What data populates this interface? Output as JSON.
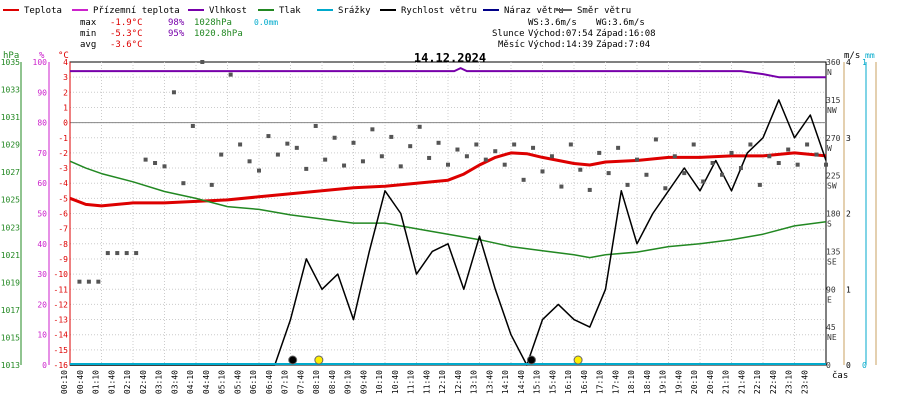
{
  "legend": [
    {
      "label": "Teplota",
      "color": "#dd0000"
    },
    {
      "label": "Přízemní teplota",
      "color": "#cc22cc"
    },
    {
      "label": "Vlhkost",
      "color": "#7700aa"
    },
    {
      "label": "Tlak",
      "color": "#228822"
    },
    {
      "label": "Srážky",
      "color": "#00aacc"
    },
    {
      "label": "Rychlost větru",
      "color": "#000000"
    },
    {
      "label": "Náraz větru",
      "color": "#000088"
    },
    {
      "label": "Směr větru",
      "color": "#666666"
    }
  ],
  "stats": {
    "max_label": "max",
    "max_temp": "-1.9°C",
    "max_hum": "98%",
    "max_press": "1028hPa",
    "rain_total": "0.0mm",
    "min_label": "min",
    "min_temp": "-5.3°C",
    "min_hum": "95%",
    "min_press": "1020.8hPa",
    "avg_label": "avg",
    "avg_temp": "-3.6°C"
  },
  "wind_stats": {
    "ws": "WS:3.6m/s",
    "wg": "WG:3.6m/s"
  },
  "sun": {
    "label": "Slunce",
    "rise": "Východ:07:54",
    "set": "Západ:16:08"
  },
  "moon": {
    "label": "Měsíc",
    "rise": "Východ:14:39",
    "set": "Západ:7:04"
  },
  "colors": {
    "grid": "#cccccc",
    "frame": "#000000",
    "zero_line": "#888888",
    "right_axis": "#c8a060",
    "rain_axis": "#00aacc"
  },
  "chart_data": {
    "type": "line",
    "title": "14.12.2024",
    "xlabel": "čas",
    "x_ticks": [
      "00:10",
      "00:40",
      "01:10",
      "01:40",
      "02:10",
      "02:40",
      "03:10",
      "03:40",
      "04:10",
      "04:40",
      "05:10",
      "05:40",
      "06:10",
      "06:40",
      "07:10",
      "07:40",
      "08:10",
      "08:40",
      "09:10",
      "09:40",
      "10:10",
      "10:40",
      "11:10",
      "11:40",
      "12:10",
      "12:40",
      "13:10",
      "13:40",
      "14:10",
      "14:40",
      "15:10",
      "15:40",
      "16:10",
      "16:40",
      "17:10",
      "17:40",
      "18:10",
      "18:40",
      "19:10",
      "19:40",
      "20:10",
      "20:40",
      "21:10",
      "21:40",
      "22:10",
      "22:40",
      "23:10",
      "23:40"
    ],
    "x_range_hours": [
      0,
      24
    ],
    "axes": {
      "pressure": {
        "unit": "hPa",
        "range": [
          1013,
          1035
        ],
        "ticks": [
          "1035",
          "1033",
          "1031",
          "1029",
          "1027",
          "1025",
          "1023",
          "1021",
          "1019",
          "1017",
          "1015",
          "1013"
        ]
      },
      "humidity": {
        "unit": "%",
        "range": [
          0,
          100
        ],
        "ticks": [
          "100",
          "90",
          "80",
          "70",
          "60",
          "50",
          "40",
          "30",
          "20",
          "10",
          "0"
        ]
      },
      "temperature": {
        "unit": "°C",
        "range": [
          -16,
          4
        ],
        "ticks": [
          "4",
          "3",
          "2",
          "1",
          "0",
          "-1",
          "-2",
          "-3",
          "-4",
          "-5",
          "-6",
          "-7",
          "-8",
          "-9",
          "-10",
          "-11",
          "-12",
          "-13",
          "-14",
          "-15",
          "-16"
        ]
      },
      "wind_direction": {
        "range": [
          0,
          360
        ],
        "ticks": [
          "360",
          "315",
          "270",
          "225",
          "180",
          "135",
          "90",
          "45",
          "0"
        ],
        "compass": [
          "N",
          "NW",
          "W",
          "SW",
          "S",
          "SE",
          "E",
          "NE",
          ""
        ]
      },
      "wind_speed": {
        "unit": "m/s",
        "range": [
          0,
          4
        ],
        "ticks": [
          "4",
          "3",
          "2",
          "1",
          "0"
        ]
      },
      "rain": {
        "unit": "mm",
        "range": [
          0,
          1
        ],
        "ticks": [
          "1",
          "0"
        ]
      }
    },
    "series": [
      {
        "name": "Teplota",
        "axis": "temperature",
        "color": "#dd0000",
        "points": [
          [
            0,
            -5.0
          ],
          [
            0.5,
            -5.4
          ],
          [
            1,
            -5.5
          ],
          [
            1.5,
            -5.4
          ],
          [
            2,
            -5.3
          ],
          [
            3,
            -5.3
          ],
          [
            4,
            -5.2
          ],
          [
            5,
            -5.1
          ],
          [
            6,
            -4.9
          ],
          [
            7,
            -4.7
          ],
          [
            8,
            -4.5
          ],
          [
            9,
            -4.3
          ],
          [
            10,
            -4.2
          ],
          [
            11,
            -4.0
          ],
          [
            12,
            -3.8
          ],
          [
            12.5,
            -3.4
          ],
          [
            13,
            -2.8
          ],
          [
            13.5,
            -2.3
          ],
          [
            14,
            -2.0
          ],
          [
            14.5,
            -2.05
          ],
          [
            15,
            -2.3
          ],
          [
            16,
            -2.7
          ],
          [
            16.5,
            -2.8
          ],
          [
            17,
            -2.6
          ],
          [
            18,
            -2.5
          ],
          [
            19,
            -2.3
          ],
          [
            20,
            -2.3
          ],
          [
            21,
            -2.2
          ],
          [
            22,
            -2.2
          ],
          [
            23,
            -2.0
          ],
          [
            24,
            -2.2
          ]
        ]
      },
      {
        "name": "Tlak",
        "axis": "pressure",
        "color": "#228822",
        "points": [
          [
            0,
            1027.8
          ],
          [
            0.5,
            1027.3
          ],
          [
            1,
            1026.9
          ],
          [
            2,
            1026.3
          ],
          [
            3,
            1025.6
          ],
          [
            4,
            1025.1
          ],
          [
            5,
            1024.5
          ],
          [
            6,
            1024.3
          ],
          [
            7,
            1023.9
          ],
          [
            8,
            1023.6
          ],
          [
            9,
            1023.3
          ],
          [
            10,
            1023.3
          ],
          [
            11,
            1022.9
          ],
          [
            12,
            1022.5
          ],
          [
            13,
            1022.1
          ],
          [
            14,
            1021.6
          ],
          [
            15,
            1021.3
          ],
          [
            16,
            1021.0
          ],
          [
            16.5,
            1020.8
          ],
          [
            17,
            1021.0
          ],
          [
            18,
            1021.2
          ],
          [
            19,
            1021.6
          ],
          [
            20,
            1021.8
          ],
          [
            21,
            1022.1
          ],
          [
            22,
            1022.5
          ],
          [
            23,
            1023.1
          ],
          [
            24,
            1023.4
          ]
        ]
      },
      {
        "name": "Vlhkost",
        "axis": "humidity",
        "color": "#7700aa",
        "points": [
          [
            0,
            97
          ],
          [
            12.2,
            97
          ],
          [
            12.4,
            98
          ],
          [
            12.6,
            97
          ],
          [
            21.3,
            97
          ],
          [
            22,
            96
          ],
          [
            22.5,
            95
          ],
          [
            24,
            95
          ]
        ]
      },
      {
        "name": "Rychlost větru",
        "axis": "wind_speed",
        "color": "#000000",
        "points": [
          [
            0,
            0
          ],
          [
            6.5,
            0
          ],
          [
            7,
            0.6
          ],
          [
            7.5,
            1.4
          ],
          [
            8,
            1.0
          ],
          [
            8.5,
            1.2
          ],
          [
            9,
            0.6
          ],
          [
            9.5,
            1.5
          ],
          [
            10,
            2.3
          ],
          [
            10.5,
            2.0
          ],
          [
            11,
            1.2
          ],
          [
            11.5,
            1.5
          ],
          [
            12,
            1.6
          ],
          [
            12.5,
            1.0
          ],
          [
            13,
            1.7
          ],
          [
            13.5,
            1.0
          ],
          [
            14,
            0.4
          ],
          [
            14.5,
            0
          ],
          [
            15,
            0.6
          ],
          [
            15.5,
            0.8
          ],
          [
            16,
            0.6
          ],
          [
            16.5,
            0.5
          ],
          [
            17,
            1.0
          ],
          [
            17.5,
            2.3
          ],
          [
            18,
            1.6
          ],
          [
            18.5,
            2.0
          ],
          [
            19,
            2.3
          ],
          [
            19.5,
            2.6
          ],
          [
            20,
            2.3
          ],
          [
            20.5,
            2.7
          ],
          [
            21,
            2.3
          ],
          [
            21.5,
            2.8
          ],
          [
            22,
            3.0
          ],
          [
            22.5,
            3.5
          ],
          [
            23,
            3.0
          ],
          [
            23.5,
            3.3
          ],
          [
            24,
            2.7
          ]
        ]
      },
      {
        "name": "Směr větru",
        "axis": "wind_direction",
        "type": "scatter",
        "color": "#555555",
        "points": [
          [
            0.3,
            99
          ],
          [
            0.6,
            99
          ],
          [
            0.9,
            99
          ],
          [
            1.2,
            133
          ],
          [
            1.5,
            133
          ],
          [
            1.8,
            133
          ],
          [
            2.1,
            133
          ],
          [
            2.4,
            244
          ],
          [
            2.7,
            240
          ],
          [
            3.0,
            236
          ],
          [
            3.3,
            324
          ],
          [
            3.6,
            216
          ],
          [
            3.9,
            284
          ],
          [
            4.2,
            360
          ],
          [
            4.5,
            214
          ],
          [
            4.8,
            250
          ],
          [
            5.1,
            345
          ],
          [
            5.4,
            262
          ],
          [
            5.7,
            242
          ],
          [
            6.0,
            231
          ],
          [
            6.3,
            272
          ],
          [
            6.6,
            250
          ],
          [
            6.9,
            263
          ],
          [
            7.2,
            258
          ],
          [
            7.5,
            233
          ],
          [
            7.8,
            284
          ],
          [
            8.1,
            244
          ],
          [
            8.4,
            270
          ],
          [
            8.7,
            237
          ],
          [
            9.0,
            264
          ],
          [
            9.3,
            242
          ],
          [
            9.6,
            280
          ],
          [
            9.9,
            248
          ],
          [
            10.2,
            271
          ],
          [
            10.5,
            236
          ],
          [
            10.8,
            260
          ],
          [
            11.1,
            283
          ],
          [
            11.4,
            246
          ],
          [
            11.7,
            264
          ],
          [
            12.0,
            238
          ],
          [
            12.3,
            256
          ],
          [
            12.6,
            248
          ],
          [
            12.9,
            262
          ],
          [
            13.2,
            244
          ],
          [
            13.5,
            254
          ],
          [
            13.8,
            238
          ],
          [
            14.1,
            262
          ],
          [
            14.4,
            220
          ],
          [
            14.7,
            258
          ],
          [
            15.0,
            230
          ],
          [
            15.3,
            248
          ],
          [
            15.6,
            212
          ],
          [
            15.9,
            262
          ],
          [
            16.2,
            232
          ],
          [
            16.5,
            208
          ],
          [
            16.8,
            252
          ],
          [
            17.1,
            228
          ],
          [
            17.4,
            258
          ],
          [
            17.7,
            214
          ],
          [
            18.0,
            244
          ],
          [
            18.3,
            226
          ],
          [
            18.6,
            268
          ],
          [
            18.9,
            210
          ],
          [
            19.2,
            248
          ],
          [
            19.5,
            228
          ],
          [
            19.8,
            262
          ],
          [
            20.1,
            218
          ],
          [
            20.4,
            240
          ],
          [
            20.7,
            226
          ],
          [
            21.0,
            252
          ],
          [
            21.3,
            234
          ],
          [
            21.6,
            262
          ],
          [
            21.9,
            214
          ],
          [
            22.2,
            248
          ],
          [
            22.5,
            240
          ],
          [
            22.8,
            256
          ],
          [
            23.1,
            238
          ],
          [
            23.4,
            262
          ],
          [
            23.7,
            250
          ],
          [
            24.0,
            238
          ]
        ]
      }
    ],
    "markers": [
      {
        "name": "moonset",
        "hour": 7.07,
        "color": "#000000"
      },
      {
        "name": "sunrise",
        "hour": 7.9,
        "color": "#ffee00"
      },
      {
        "name": "moonrise",
        "hour": 14.65,
        "color": "#000000"
      },
      {
        "name": "sunset",
        "hour": 16.13,
        "color": "#ffee00"
      }
    ]
  }
}
